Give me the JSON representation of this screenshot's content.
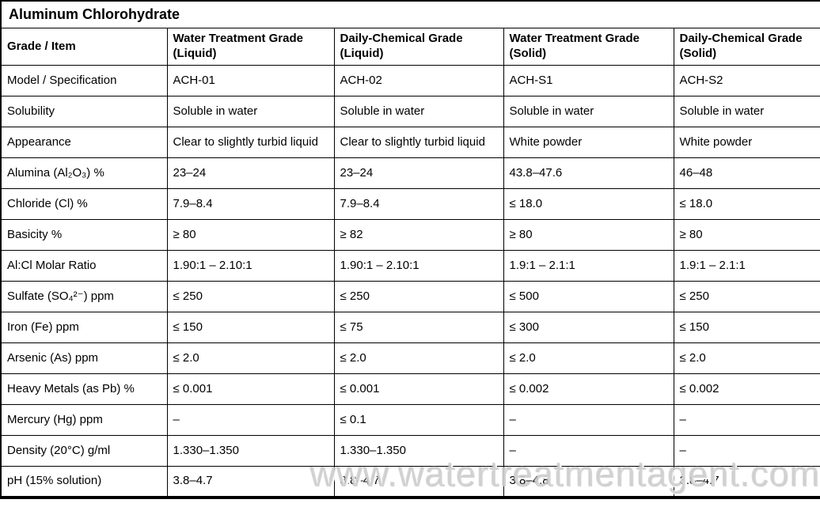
{
  "page": {
    "title": "Aluminum Chlorohydrate"
  },
  "table": {
    "corner_header": "Grade / Item",
    "columns": [
      "Water Treatment Grade (Liquid)",
      "Daily-Chemical Grade (Liquid)",
      "Water Treatment Grade (Solid)",
      "Daily-Chemical Grade (Solid)"
    ],
    "rows": [
      {
        "label": "Model / Specification",
        "values": [
          "ACH-01",
          "ACH-02",
          "ACH-S1",
          "ACH-S2"
        ]
      },
      {
        "label": "Solubility",
        "values": [
          "Soluble in water",
          "Soluble in water",
          "Soluble in water",
          "Soluble in water"
        ]
      },
      {
        "label": "Appearance",
        "values": [
          "Clear to slightly turbid liquid",
          "Clear to slightly turbid liquid",
          "White powder",
          "White powder"
        ]
      },
      {
        "label": "Alumina (Al₂O₃) %",
        "values": [
          "23–24",
          "23–24",
          "43.8–47.6",
          "46–48"
        ]
      },
      {
        "label": "Chloride (Cl) %",
        "values": [
          "7.9–8.4",
          "7.9–8.4",
          "≤ 18.0",
          "≤ 18.0"
        ]
      },
      {
        "label": "Basicity %",
        "values": [
          "≥ 80",
          "≥ 82",
          "≥ 80",
          "≥ 80"
        ]
      },
      {
        "label": "Al:Cl Molar Ratio",
        "values": [
          "1.90:1 – 2.10:1",
          "1.90:1 – 2.10:1",
          "1.9:1 – 2.1:1",
          "1.9:1 – 2.1:1"
        ]
      },
      {
        "label": "Sulfate (SO₄²⁻) ppm",
        "values": [
          "≤ 250",
          "≤ 250",
          "≤ 500",
          "≤ 250"
        ]
      },
      {
        "label": "Iron (Fe) ppm",
        "values": [
          "≤ 150",
          "≤ 75",
          "≤ 300",
          "≤ 150"
        ]
      },
      {
        "label": "Arsenic (As) ppm",
        "values": [
          "≤ 2.0",
          "≤ 2.0",
          "≤ 2.0",
          "≤ 2.0"
        ]
      },
      {
        "label": "Heavy Metals (as Pb) %",
        "values": [
          "≤ 0.001",
          "≤ 0.001",
          "≤ 0.002",
          "≤ 0.002"
        ]
      },
      {
        "label": "Mercury (Hg) ppm",
        "values": [
          "–",
          "≤ 0.1",
          "–",
          "–"
        ]
      },
      {
        "label": "Density (20°C) g/ml",
        "values": [
          "1.330–1.350",
          "1.330–1.350",
          "–",
          "–"
        ]
      },
      {
        "label": "pH (15% solution)",
        "values": [
          "3.8–4.7",
          "3.8–4.7",
          "3.8–4.8",
          "3.8–4.7"
        ]
      }
    ]
  },
  "watermark": {
    "text": "www.watertreatmentagent.com",
    "color": "#cdcdcd"
  }
}
